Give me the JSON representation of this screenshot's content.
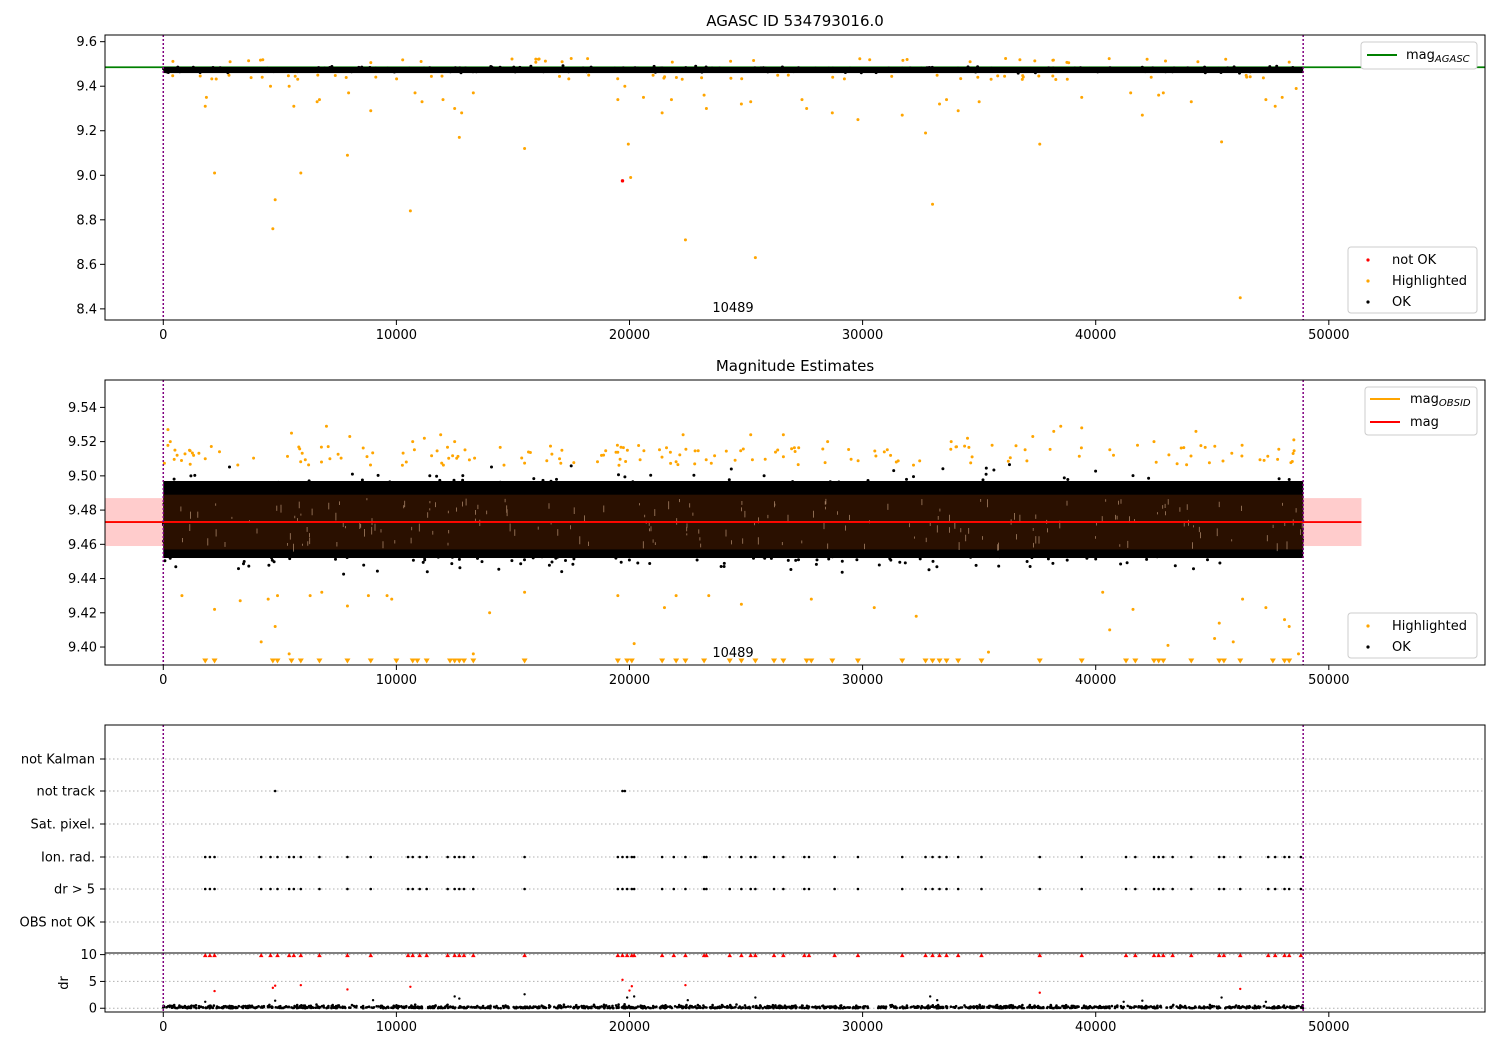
{
  "figure": {
    "title": "AGASC ID 534793016.0",
    "obsid_label": "10489",
    "colors": {
      "ok": "#000000",
      "highlighted": "#ffa500",
      "not_ok": "#ff0000",
      "mag_agasc": "#008000",
      "mag_obsid": "#ffa500",
      "mag": "#ff0000",
      "obs_boundary": "#800080",
      "band": "#ffcccc",
      "dense_fill": "#2a1000"
    }
  },
  "chart_data": [
    {
      "type": "scatter",
      "title": "AGASC ID 534793016.0",
      "xlim": [
        -2500,
        56700
      ],
      "ylim": [
        8.35,
        9.63
      ],
      "x_ticks": [
        0,
        10000,
        20000,
        30000,
        40000,
        50000
      ],
      "y_ticks": [
        8.4,
        8.6,
        8.8,
        9.0,
        9.2,
        9.4,
        9.6
      ],
      "x_tick_labels": [
        "0",
        "10000",
        "20000",
        "30000",
        "40000",
        "50000"
      ],
      "y_tick_labels": [
        "8.4",
        "8.6",
        "8.8",
        "9.0",
        "9.2",
        "9.4",
        "9.6"
      ],
      "obs_boundaries": [
        0,
        48900
      ],
      "mag_agasc": 9.485,
      "ok_band": {
        "x_range": [
          0,
          48900
        ],
        "y_range": [
          9.45,
          9.5
        ]
      },
      "series": [
        {
          "name": "not OK",
          "points": [
            [
              19700,
              8.975
            ]
          ]
        },
        {
          "name": "Highlighted",
          "points": [
            [
              1800,
              9.31
            ],
            [
              1850,
              9.35
            ],
            [
              2200,
              9.01
            ],
            [
              4600,
              9.4
            ],
            [
              4700,
              8.76
            ],
            [
              4800,
              8.89
            ],
            [
              5400,
              9.4
            ],
            [
              5600,
              9.31
            ],
            [
              5900,
              9.01
            ],
            [
              6600,
              9.33
            ],
            [
              6700,
              9.34
            ],
            [
              7900,
              9.09
            ],
            [
              7950,
              9.37
            ],
            [
              8900,
              9.29
            ],
            [
              10600,
              8.84
            ],
            [
              10800,
              9.37
            ],
            [
              11100,
              9.33
            ],
            [
              12000,
              9.34
            ],
            [
              12500,
              9.3
            ],
            [
              12700,
              9.17
            ],
            [
              12800,
              9.28
            ],
            [
              13300,
              9.37
            ],
            [
              15500,
              9.12
            ],
            [
              19500,
              9.34
            ],
            [
              19800,
              9.4
            ],
            [
              19950,
              9.14
            ],
            [
              20050,
              8.99
            ],
            [
              20600,
              9.35
            ],
            [
              21400,
              9.28
            ],
            [
              21800,
              9.34
            ],
            [
              22400,
              8.71
            ],
            [
              23200,
              9.36
            ],
            [
              23300,
              9.3
            ],
            [
              24800,
              9.32
            ],
            [
              25200,
              9.33
            ],
            [
              25400,
              8.63
            ],
            [
              27400,
              9.34
            ],
            [
              27600,
              9.3
            ],
            [
              28700,
              9.28
            ],
            [
              29800,
              9.25
            ],
            [
              31700,
              9.27
            ],
            [
              32700,
              9.19
            ],
            [
              33000,
              8.87
            ],
            [
              33300,
              9.32
            ],
            [
              33600,
              9.34
            ],
            [
              34100,
              9.29
            ],
            [
              35000,
              9.33
            ],
            [
              37600,
              9.14
            ],
            [
              39400,
              9.35
            ],
            [
              41500,
              9.37
            ],
            [
              42000,
              9.27
            ],
            [
              42700,
              9.36
            ],
            [
              42900,
              9.37
            ],
            [
              44100,
              9.33
            ],
            [
              45400,
              9.15
            ],
            [
              46200,
              8.45
            ],
            [
              47300,
              9.34
            ],
            [
              47700,
              9.31
            ],
            [
              48000,
              9.35
            ],
            [
              48600,
              9.39
            ]
          ]
        },
        {
          "name": "OK",
          "points": []
        }
      ],
      "legend_lines": [
        {
          "name": "mag_AGASC"
        }
      ],
      "legend_points": [
        "not OK",
        "Highlighted",
        "OK"
      ],
      "annotation": "10489"
    },
    {
      "type": "scatter",
      "title": "Magnitude Estimates",
      "xlim": [
        -2500,
        56700
      ],
      "ylim": [
        9.3895,
        9.556
      ],
      "x_ticks": [
        0,
        10000,
        20000,
        30000,
        40000,
        50000
      ],
      "y_ticks": [
        9.4,
        9.42,
        9.44,
        9.46,
        9.48,
        9.5,
        9.52,
        9.54
      ],
      "x_tick_labels": [
        "0",
        "10000",
        "20000",
        "30000",
        "40000",
        "50000"
      ],
      "y_tick_labels": [
        "9.40",
        "9.42",
        "9.44",
        "9.46",
        "9.48",
        "9.50",
        "9.52",
        "9.54"
      ],
      "obs_boundaries": [
        0,
        48900
      ],
      "mag": 9.473,
      "mag_obsid": 9.473,
      "mag_band": [
        9.459,
        9.487
      ],
      "dense_band": {
        "x_range": [
          0,
          48900
        ],
        "y_range": [
          9.457,
          9.489
        ]
      },
      "ok_band": {
        "x_range": [
          0,
          48900
        ],
        "y_range": [
          9.44,
          9.505
        ]
      },
      "series": [
        {
          "name": "Highlighted",
          "points": [
            [
              200,
              9.527
            ],
            [
              300,
              9.52
            ],
            [
              500,
              9.515
            ],
            [
              800,
              9.43
            ],
            [
              1300,
              9.512
            ],
            [
              1800,
              9.51
            ],
            [
              2200,
              9.422
            ],
            [
              3300,
              9.427
            ],
            [
              4200,
              9.403
            ],
            [
              4500,
              9.428
            ],
            [
              4800,
              9.412
            ],
            [
              4900,
              9.43
            ],
            [
              5400,
              9.396
            ],
            [
              5500,
              9.525
            ],
            [
              6300,
              9.43
            ],
            [
              6800,
              9.432
            ],
            [
              7000,
              9.529
            ],
            [
              7900,
              9.424
            ],
            [
              8000,
              9.523
            ],
            [
              8800,
              9.43
            ],
            [
              9600,
              9.43
            ],
            [
              9800,
              9.428
            ],
            [
              10700,
              9.52
            ],
            [
              11200,
              9.522
            ],
            [
              11900,
              9.524
            ],
            [
              12500,
              9.52
            ],
            [
              13300,
              9.396
            ],
            [
              14000,
              9.42
            ],
            [
              15500,
              9.432
            ],
            [
              17000,
              9.51
            ],
            [
              18800,
              9.512
            ],
            [
              19500,
              9.43
            ],
            [
              20200,
              9.402
            ],
            [
              21500,
              9.423
            ],
            [
              22000,
              9.43
            ],
            [
              22300,
              9.524
            ],
            [
              23400,
              9.43
            ],
            [
              24800,
              9.425
            ],
            [
              25200,
              9.524
            ],
            [
              26600,
              9.524
            ],
            [
              27800,
              9.428
            ],
            [
              28500,
              9.52
            ],
            [
              30500,
              9.423
            ],
            [
              31200,
              9.512
            ],
            [
              32300,
              9.418
            ],
            [
              33800,
              9.52
            ],
            [
              34500,
              9.522
            ],
            [
              35400,
              9.397
            ],
            [
              37300,
              9.523
            ],
            [
              38200,
              9.526
            ],
            [
              38500,
              9.529
            ],
            [
              39400,
              9.528
            ],
            [
              40300,
              9.432
            ],
            [
              40600,
              9.41
            ],
            [
              41600,
              9.422
            ],
            [
              42500,
              9.52
            ],
            [
              43100,
              9.401
            ],
            [
              44300,
              9.526
            ],
            [
              45100,
              9.405
            ],
            [
              45300,
              9.414
            ],
            [
              45900,
              9.403
            ],
            [
              46300,
              9.428
            ],
            [
              47300,
              9.423
            ],
            [
              48100,
              9.416
            ],
            [
              48300,
              9.412
            ],
            [
              48500,
              9.521
            ],
            [
              48700,
              9.396
            ]
          ]
        },
        {
          "name": "OK",
          "points": []
        }
      ],
      "clipped_low_x": [
        1800,
        2200,
        4700,
        4900,
        5500,
        5900,
        6700,
        7900,
        8900,
        10000,
        10700,
        10900,
        11300,
        12300,
        12500,
        12700,
        12900,
        13300,
        15500,
        19500,
        19900,
        20100,
        21400,
        22000,
        22400,
        23200,
        24300,
        24800,
        25400,
        26200,
        26600,
        27600,
        27800,
        28700,
        29800,
        31700,
        32700,
        33000,
        33300,
        33600,
        34100,
        35100,
        37600,
        39400,
        41300,
        41700,
        42500,
        42700,
        42900,
        44100,
        45300,
        45500,
        46200,
        47600,
        48100,
        48300
      ]
    },
    {
      "type": "scatter",
      "title": "",
      "xlim": [
        -2500,
        56700
      ],
      "categories": [
        "not Kalman",
        "not track",
        "Sat. pixel.",
        "Ion. rad.",
        "dr > 5",
        "OBS not OK"
      ],
      "flag_points": {
        "not track": [
          4800,
          19700,
          19800
        ],
        "Ion. rad.": [
          1800,
          2000,
          2200,
          4200,
          4600,
          4900,
          5400,
          5600,
          5900,
          6700,
          7900,
          8900,
          10500,
          10700,
          11000,
          11300,
          12200,
          12500,
          12700,
          12900,
          13300,
          15500,
          19500,
          19700,
          19900,
          20100,
          20200,
          21400,
          21900,
          22400,
          23200,
          23300,
          24300,
          24800,
          25200,
          25400,
          26200,
          26600,
          27500,
          27700,
          28800,
          29800,
          31700,
          32700,
          33000,
          33300,
          33600,
          34100,
          35100,
          37600,
          39400,
          41300,
          41700,
          42500,
          42700,
          42900,
          43300,
          44100,
          45300,
          45500,
          46200,
          47400,
          47700,
          48100,
          48300,
          48800
        ],
        "dr > 5": [
          1800,
          2000,
          2200,
          4200,
          4600,
          4900,
          5400,
          5600,
          5900,
          6700,
          7900,
          8900,
          10500,
          10700,
          11000,
          11300,
          12200,
          12500,
          12700,
          12900,
          13300,
          15500,
          19500,
          19700,
          19900,
          20100,
          20200,
          21400,
          21900,
          22400,
          23200,
          23300,
          24300,
          24800,
          25200,
          25400,
          26200,
          26600,
          27500,
          27700,
          28800,
          29800,
          31700,
          32700,
          33000,
          33300,
          33600,
          34100,
          35100,
          37600,
          39400,
          41300,
          41700,
          42500,
          42700,
          42900,
          43300,
          44100,
          45300,
          45500,
          46200,
          47400,
          47700,
          48100,
          48300,
          48800
        ]
      }
    },
    {
      "type": "scatter",
      "title": "",
      "ylabel": "dr",
      "xlim": [
        -2500,
        56700
      ],
      "ylim": [
        -0.7,
        10.3
      ],
      "x_ticks": [
        0,
        10000,
        20000,
        30000,
        40000,
        50000
      ],
      "y_ticks": [
        0,
        5,
        10
      ],
      "x_tick_labels": [
        "0",
        "10000",
        "20000",
        "30000",
        "40000",
        "50000"
      ],
      "y_tick_labels": [
        "0",
        "5",
        "10"
      ],
      "red_points": [
        [
          2200,
          3.2
        ],
        [
          4700,
          3.8
        ],
        [
          4800,
          4.2
        ],
        [
          5900,
          4.3
        ],
        [
          7900,
          3.5
        ],
        [
          10600,
          4.0
        ],
        [
          19700,
          5.3
        ],
        [
          20000,
          3.3
        ],
        [
          20100,
          4.1
        ],
        [
          22400,
          4.3
        ],
        [
          37600,
          2.9
        ],
        [
          46200,
          3.6
        ]
      ],
      "black_points": [
        [
          1800,
          1.2
        ],
        [
          4800,
          1.4
        ],
        [
          9000,
          1.5
        ],
        [
          12500,
          2.2
        ],
        [
          12700,
          1.8
        ],
        [
          15500,
          2.6
        ],
        [
          19900,
          2.0
        ],
        [
          20200,
          2.2
        ],
        [
          22500,
          1.5
        ],
        [
          25400,
          2.0
        ],
        [
          32900,
          2.2
        ],
        [
          33200,
          1.5
        ],
        [
          41200,
          1.2
        ],
        [
          42000,
          1.4
        ],
        [
          45400,
          2.0
        ],
        [
          47300,
          1.2
        ]
      ]
    }
  ]
}
